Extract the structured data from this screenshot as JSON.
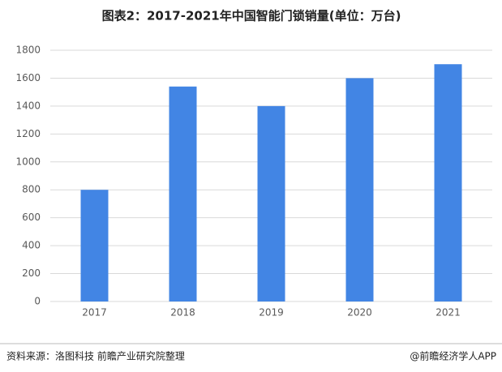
{
  "chart_data": {
    "type": "bar",
    "title": "图表2：2017-2021年中国智能门锁销量(单位：万台)",
    "categories": [
      "2017",
      "2018",
      "2019",
      "2020",
      "2021"
    ],
    "values": [
      800,
      1540,
      1400,
      1600,
      1700
    ],
    "color": "#4285e4",
    "ylim": [
      0,
      1800
    ],
    "yticks": [
      0,
      200,
      400,
      600,
      800,
      1000,
      1200,
      1400,
      1600,
      1800
    ],
    "grid": true
  },
  "footer": {
    "source": "资料来源：洛图科技 前瞻产业研究院整理",
    "brand": "@前瞻经济学人APP"
  }
}
